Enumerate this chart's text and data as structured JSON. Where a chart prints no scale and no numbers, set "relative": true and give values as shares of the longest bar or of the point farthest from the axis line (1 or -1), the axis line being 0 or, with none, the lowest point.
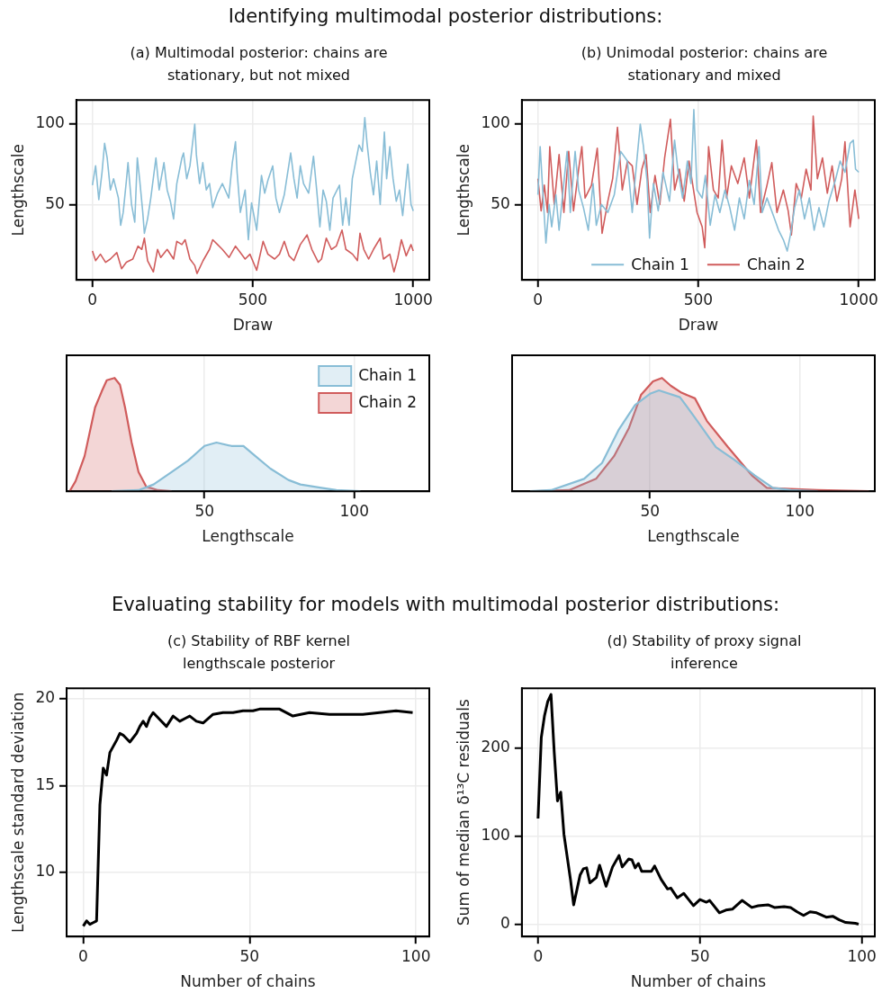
{
  "chart_data": [
    {
      "type": "line",
      "title": "(a) Multimodal posterior: chains are stationary, but not mixed",
      "xlabel": "Draw",
      "ylabel": "Lengthscale",
      "annotations": [
        "Identifying multimodal posterior distributions:"
      ],
      "xlim": [
        -50,
        1050
      ],
      "ylim": [
        3,
        115
      ],
      "xticks": [
        0,
        500,
        1000
      ],
      "yticks": [
        50,
        100
      ],
      "grid": true,
      "series": [
        {
          "color": "#88bdd6",
          "x": [
            0,
            10,
            20,
            30,
            38,
            46,
            56,
            66,
            81,
            88,
            96,
            106,
            111,
            122,
            132,
            140,
            147,
            157,
            162,
            172,
            182,
            198,
            208,
            223,
            233,
            243,
            253,
            263,
            279,
            284,
            294,
            304,
            319,
            324,
            334,
            344,
            355,
            365,
            375,
            390,
            405,
            425,
            436,
            446,
            451,
            461,
            476,
            486,
            496,
            512,
            527,
            537,
            547,
            562,
            572,
            583,
            598,
            618,
            628,
            638,
            648,
            658,
            674,
            689,
            699,
            709,
            719,
            729,
            740,
            750,
            770,
            780,
            790,
            800,
            810,
            821,
            831,
            841,
            849,
            856,
            866,
            876,
            886,
            897,
            910,
            917,
            927,
            937,
            947,
            957,
            967,
            983,
            993,
            1000
          ],
          "values": [
            62,
            74,
            53,
            70,
            88,
            79,
            59,
            66,
            54,
            37,
            45,
            65,
            76,
            50,
            39,
            79,
            66,
            45,
            32,
            41,
            54,
            79,
            59,
            76,
            59,
            52,
            41,
            63,
            79,
            82,
            66,
            74,
            100,
            81,
            63,
            76,
            59,
            63,
            48,
            57,
            63,
            54,
            76,
            89,
            70,
            45,
            59,
            28,
            51,
            34,
            68,
            57,
            65,
            74,
            54,
            45,
            56,
            82,
            66,
            54,
            74,
            63,
            57,
            80,
            59,
            36,
            59,
            52,
            34,
            54,
            62,
            37,
            54,
            37,
            66,
            77,
            87,
            83,
            104,
            88,
            70,
            56,
            77,
            50,
            95,
            66,
            86,
            66,
            52,
            59,
            43,
            75,
            50,
            46
          ]
        },
        {
          "color": "#d05c5c",
          "x": [
            0,
            10,
            25,
            41,
            56,
            76,
            91,
            106,
            126,
            142,
            154,
            162,
            172,
            190,
            203,
            213,
            233,
            253,
            263,
            279,
            289,
            304,
            319,
            326,
            345,
            365,
            375,
            390,
            405,
            426,
            446,
            461,
            476,
            491,
            512,
            532,
            547,
            568,
            583,
            598,
            613,
            628,
            648,
            669,
            684,
            704,
            714,
            729,
            745,
            760,
            778,
            790,
            811,
            826,
            834,
            846,
            861,
            876,
            897,
            907,
            927,
            940,
            952,
            963,
            978,
            993,
            1000
          ],
          "values": [
            21,
            15,
            19,
            14,
            16,
            20,
            10,
            14,
            16,
            24,
            22,
            29,
            15,
            8,
            22,
            17,
            22,
            16,
            27,
            25,
            28,
            16,
            12,
            7,
            15,
            22,
            28,
            25,
            22,
            17,
            24,
            20,
            16,
            19,
            9,
            27,
            19,
            16,
            19,
            27,
            18,
            15,
            25,
            31,
            22,
            14,
            16,
            29,
            22,
            24,
            34,
            22,
            19,
            15,
            32,
            22,
            16,
            22,
            29,
            16,
            19,
            8,
            17,
            28,
            18,
            25,
            21
          ]
        }
      ]
    },
    {
      "type": "line",
      "title": "(b) Unimodal posterior: chains are stationary and mixed",
      "xlabel": "Draw",
      "ylabel": "Lengthscale",
      "xlim": [
        -50,
        1050
      ],
      "ylim": [
        3,
        115
      ],
      "xticks": [
        0,
        500,
        1000
      ],
      "yticks": [
        50,
        100
      ],
      "grid": true,
      "legend": "bottom",
      "series": [
        {
          "name": "Chain 1",
          "color": "#88bdd6",
          "x": [
            0,
            7,
            15,
            25,
            35,
            43,
            56,
            66,
            76,
            91,
            101,
            116,
            127,
            142,
            157,
            172,
            182,
            198,
            218,
            238,
            258,
            279,
            294,
            304,
            319,
            329,
            340,
            348,
            360,
            375,
            390,
            410,
            426,
            436,
            451,
            466,
            477,
            486,
            496,
            512,
            522,
            537,
            552,
            567,
            583,
            598,
            613,
            628,
            643,
            659,
            674,
            689,
            699,
            714,
            734,
            750,
            765,
            777,
            787,
            800,
            815,
            831,
            846,
            861,
            876,
            891,
            907,
            927,
            942,
            957,
            973,
            983,
            990,
            1000
          ],
          "values": [
            56,
            86,
            59,
            26,
            50,
            36,
            56,
            34,
            54,
            83,
            45,
            83,
            59,
            48,
            34,
            63,
            37,
            50,
            45,
            56,
            83,
            77,
            45,
            68,
            100,
            86,
            65,
            29,
            63,
            46,
            70,
            52,
            90,
            72,
            54,
            77,
            63,
            109,
            59,
            54,
            68,
            37,
            56,
            45,
            59,
            48,
            34,
            54,
            41,
            65,
            50,
            86,
            45,
            54,
            43,
            34,
            28,
            21,
            31,
            48,
            59,
            41,
            54,
            34,
            48,
            36,
            52,
            65,
            77,
            70,
            88,
            90,
            72,
            70
          ]
        },
        {
          "name": "Chain 2",
          "color": "#d05c5c",
          "x": [
            0,
            10,
            20,
            30,
            37,
            51,
            66,
            81,
            96,
            111,
            127,
            137,
            147,
            167,
            185,
            200,
            218,
            233,
            248,
            263,
            279,
            294,
            309,
            324,
            337,
            350,
            365,
            380,
            395,
            413,
            426,
            441,
            456,
            471,
            496,
            512,
            520,
            532,
            547,
            562,
            574,
            588,
            603,
            623,
            643,
            659,
            681,
            694,
            714,
            729,
            745,
            765,
            780,
            790,
            805,
            821,
            836,
            851,
            858,
            871,
            887,
            902,
            917,
            932,
            947,
            957,
            973,
            988,
            1000
          ],
          "values": [
            66,
            46,
            62,
            45,
            86,
            50,
            81,
            45,
            83,
            46,
            72,
            86,
            54,
            62,
            85,
            32,
            52,
            66,
            98,
            59,
            77,
            74,
            50,
            72,
            81,
            45,
            68,
            50,
            79,
            103,
            59,
            72,
            52,
            77,
            45,
            36,
            23,
            86,
            59,
            54,
            90,
            54,
            74,
            63,
            79,
            54,
            90,
            45,
            62,
            76,
            45,
            59,
            46,
            31,
            63,
            54,
            72,
            59,
            105,
            66,
            79,
            57,
            74,
            52,
            66,
            89,
            36,
            59,
            41
          ]
        }
      ]
    },
    {
      "type": "area",
      "xlabel": "Lengthscale",
      "relative": true,
      "xlim": [
        4,
        125
      ],
      "xticks": [
        50,
        100
      ],
      "grid": "x",
      "legend": "top right",
      "series": [
        {
          "name": "Chain 1",
          "color": "#88bdd6",
          "x": [
            19,
            28,
            33,
            39,
            44.5,
            50,
            54,
            59,
            63,
            67,
            72,
            78,
            82,
            89,
            94,
            102
          ],
          "values": [
            0,
            0.01,
            0.06,
            0.17,
            0.27,
            0.4,
            0.43,
            0.4,
            0.4,
            0.31,
            0.2,
            0.1,
            0.06,
            0.03,
            0.01,
            0
          ]
        },
        {
          "name": "Chain 2",
          "color": "#d05c5c",
          "x": [
            5,
            7,
            10,
            13.5,
            15.7,
            17.4,
            20,
            21.8,
            23.5,
            25.7,
            28,
            30.6,
            34.5,
            39
          ],
          "values": [
            0,
            0.09,
            0.31,
            0.74,
            0.88,
            0.98,
            1,
            0.94,
            0.74,
            0.43,
            0.17,
            0.04,
            0.01,
            0
          ]
        }
      ]
    },
    {
      "type": "area",
      "xlabel": "Lengthscale",
      "relative": true,
      "xlim": [
        4,
        125
      ],
      "xticks": [
        50,
        100
      ],
      "grid": "x",
      "series": [
        {
          "color": "#88bdd6",
          "x": [
            10,
            17,
            28,
            34,
            39.5,
            45,
            50,
            53,
            60,
            65,
            72,
            78,
            85,
            91,
            97,
            106
          ],
          "values": [
            0,
            0.01,
            0.11,
            0.25,
            0.54,
            0.76,
            0.86,
            0.89,
            0.83,
            0.65,
            0.39,
            0.28,
            0.14,
            0.03,
            0.01,
            0
          ]
        },
        {
          "color": "#d05c5c",
          "x": [
            12,
            23,
            32,
            38,
            43,
            47,
            51,
            54,
            57,
            60.5,
            65,
            69,
            76,
            84,
            89,
            97,
            106,
            123
          ],
          "values": [
            0,
            0.01,
            0.11,
            0.31,
            0.56,
            0.85,
            0.97,
            1,
            0.93,
            0.87,
            0.82,
            0.62,
            0.39,
            0.14,
            0.03,
            0.02,
            0.01,
            0
          ]
        }
      ]
    },
    {
      "type": "line",
      "title": "(c) Stability of RBF kernel lengthscale posterior",
      "xlabel": "Number of chains",
      "ylabel": "Lengthscale standard deviation",
      "annotations": [
        "Evaluating stability for models with multimodal posterior distributions:"
      ],
      "xlim": [
        -5,
        104
      ],
      "ylim": [
        6.3,
        20.6
      ],
      "xticks": [
        0,
        50,
        100
      ],
      "yticks": [
        10,
        15,
        20
      ],
      "grid": true,
      "x": [
        0,
        1,
        2,
        3,
        4,
        5,
        6,
        7,
        8,
        10,
        11,
        12,
        14,
        16,
        17,
        18,
        19,
        20,
        21,
        23,
        25,
        27,
        29,
        31,
        32,
        34,
        36,
        39,
        42,
        45,
        48,
        51,
        53,
        56,
        59,
        63,
        68,
        74,
        79,
        84,
        89,
        94,
        99
      ],
      "series": [
        {
          "color": "#000000",
          "values": [
            6.9,
            7.2,
            7.0,
            7.1,
            7.2,
            13.9,
            16.0,
            15.6,
            16.9,
            17.6,
            18.0,
            17.9,
            17.5,
            18.0,
            18.4,
            18.7,
            18.4,
            18.9,
            19.2,
            18.8,
            18.4,
            19.0,
            18.7,
            18.9,
            19.0,
            18.7,
            18.6,
            19.1,
            19.2,
            19.2,
            19.3,
            19.3,
            19.4,
            19.4,
            19.4,
            19.0,
            19.2,
            19.1,
            19.1,
            19.1,
            19.2,
            19.3,
            19.2
          ]
        }
      ]
    },
    {
      "type": "line",
      "title": "(d) Stability of proxy signal inference",
      "xlabel": "Number of chains",
      "ylabel": "Sum of median δ¹³C residuals",
      "xlim": [
        -5,
        104
      ],
      "ylim": [
        -14,
        268
      ],
      "xticks": [
        0,
        50,
        100
      ],
      "yticks": [
        0,
        100,
        200
      ],
      "grid": true,
      "x": [
        0,
        1,
        2,
        3,
        4,
        5,
        6,
        7,
        8,
        10,
        11,
        13,
        14,
        15,
        16,
        18,
        19,
        21,
        23,
        25,
        26,
        28,
        29,
        30,
        31,
        32,
        35,
        36,
        38,
        40,
        41,
        43,
        45,
        48,
        50,
        52,
        53,
        56,
        58,
        60,
        63,
        66,
        68,
        71,
        73,
        76,
        78,
        80,
        82,
        84,
        86,
        89,
        91,
        93,
        95,
        98,
        99
      ],
      "series": [
        {
          "color": "#000000",
          "values": [
            120,
            212,
            237,
            253,
            261,
            195,
            140,
            150,
            102,
            51,
            22,
            56,
            63,
            64,
            47,
            53,
            67,
            43,
            65,
            78,
            65,
            74,
            73,
            64,
            69,
            60,
            60,
            66,
            51,
            40,
            41,
            30,
            35,
            21,
            28,
            25,
            27,
            13,
            16,
            17,
            27,
            19,
            21,
            22,
            19,
            20,
            19,
            14,
            10,
            14,
            13,
            8,
            9,
            5,
            2,
            1,
            0
          ]
        }
      ]
    }
  ]
}
